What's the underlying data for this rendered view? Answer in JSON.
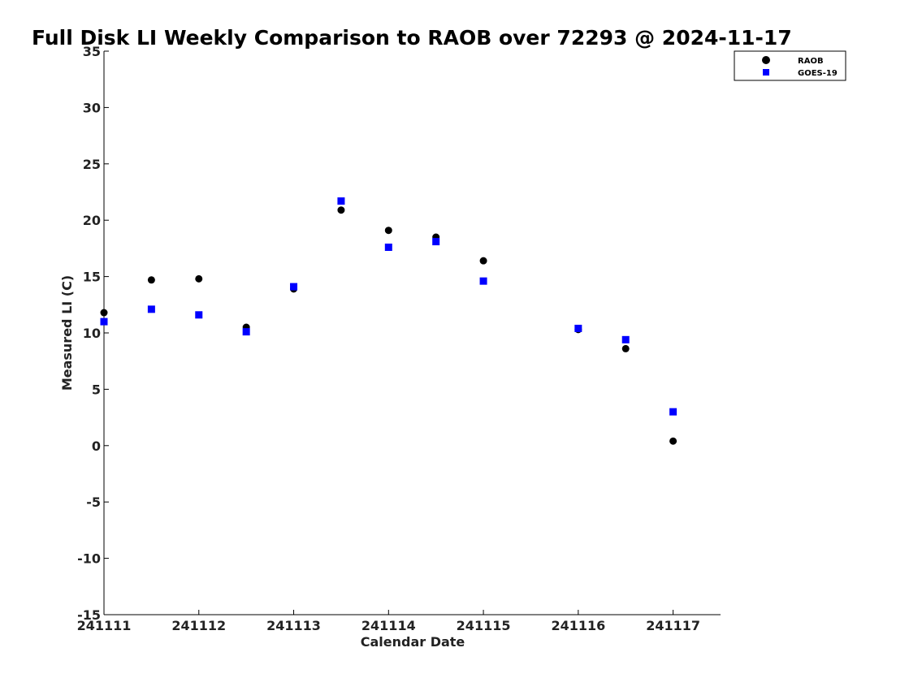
{
  "chart_data": {
    "type": "scatter",
    "title": "Full Disk LI Weekly Comparison to RAOB over 72293 @ 2024-11-17",
    "xlabel": "Calendar Date",
    "ylabel": "Measured LI (C)",
    "x_ticks": [
      "241111",
      "241112",
      "241113",
      "241114",
      "241115",
      "241116",
      "241117"
    ],
    "x_tick_values": [
      0,
      1,
      2,
      3,
      4,
      5,
      6
    ],
    "xlim": [
      0,
      6.5
    ],
    "ylim": [
      -15,
      35
    ],
    "y_ticks": [
      -15,
      -10,
      -5,
      0,
      5,
      10,
      15,
      20,
      25,
      30,
      35
    ],
    "grid": false,
    "legend_position": "top-right",
    "series": [
      {
        "name": "RAOB",
        "marker": "circle",
        "color": "#000000",
        "x": [
          0,
          0.5,
          1,
          1.5,
          2,
          2.5,
          3,
          3.5,
          4,
          5,
          5.5,
          6
        ],
        "y": [
          11.8,
          14.7,
          14.8,
          10.5,
          13.9,
          20.9,
          19.1,
          18.5,
          16.4,
          10.3,
          8.6,
          0.4
        ]
      },
      {
        "name": "GOES-19",
        "marker": "square",
        "color": "#0000ff",
        "x": [
          0,
          0.5,
          1,
          1.5,
          2,
          2.5,
          3,
          3.5,
          4,
          5,
          5.5,
          6
        ],
        "y": [
          11.0,
          12.1,
          11.6,
          10.1,
          14.1,
          21.7,
          17.6,
          18.1,
          14.6,
          10.4,
          9.4,
          3.0
        ]
      }
    ]
  }
}
